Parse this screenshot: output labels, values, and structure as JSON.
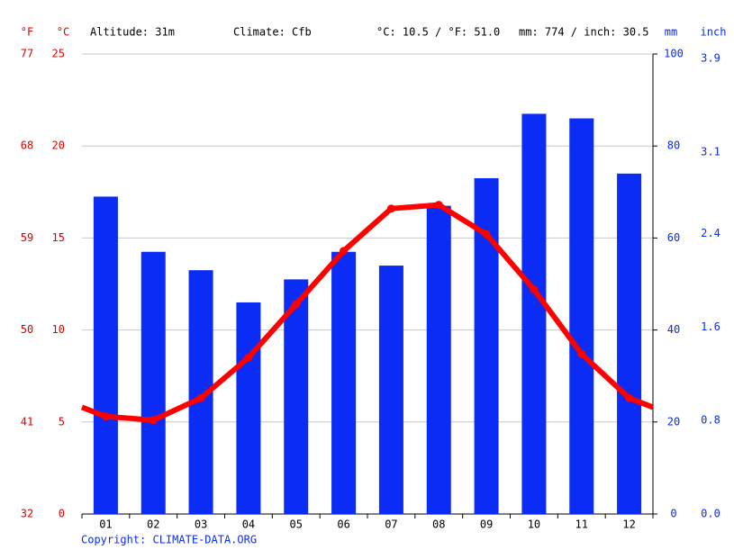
{
  "chart_data": {
    "type": "climate",
    "altitude": "Altitude: 31m",
    "climate": "Climate: Cfb",
    "temp_avg": "°C: 10.5 / °F: 51.0",
    "precip_total": "mm: 774 / inch: 30.5",
    "y_label": "°C",
    "yf_label": "°F",
    "y2_label": "mm",
    "y2_inch_label": "inch",
    "copyright": "Copyright: CLIMATE-DATA.ORG",
    "categories": [
      "01",
      "02",
      "03",
      "04",
      "05",
      "06",
      "07",
      "08",
      "09",
      "10",
      "11",
      "12"
    ],
    "ylim": [
      0,
      25
    ],
    "yticks": [
      0,
      5,
      10,
      15,
      20,
      25
    ],
    "yf_lim": [
      32,
      77
    ],
    "yf_ticks": [
      32,
      41,
      50,
      59,
      68,
      77
    ],
    "y2lim": [
      0,
      100
    ],
    "y2ticks": [
      0,
      20,
      40,
      60,
      80,
      100
    ],
    "y2_inch_lim": [
      0,
      3.94
    ],
    "y2_inch_ticks": [
      {
        "value": 0,
        "label": "0.0"
      },
      0.8,
      1.6,
      2.4,
      3.1,
      3.9
    ],
    "grid": true,
    "series": [
      {
        "type": "bar",
        "axis": "y2",
        "color": "#0a2cf5",
        "values": [
          69,
          57,
          53,
          46,
          51,
          57,
          54,
          67,
          73,
          87,
          86,
          74
        ]
      },
      {
        "type": "line",
        "color": "#ff0000",
        "values": [
          5.3,
          5.1,
          6.3,
          8.5,
          11.4,
          14.3,
          16.6,
          16.8,
          15.2,
          12.2,
          8.7,
          6.3
        ]
      }
    ]
  }
}
